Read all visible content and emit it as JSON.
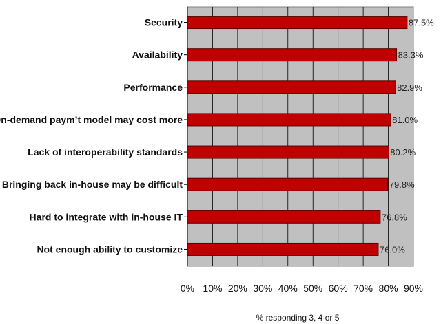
{
  "chart_data": {
    "type": "bar",
    "orientation": "horizontal",
    "categories": [
      "Security",
      "Availability",
      "Performance",
      "On-demand paym’t model may cost more",
      "Lack of interoperability standards",
      "Bringing back in-house may be difficult",
      "Hard to integrate with in-house IT",
      "Not enough ability to customize"
    ],
    "values": [
      87.5,
      83.3,
      82.9,
      81.0,
      80.2,
      79.8,
      76.8,
      76.0
    ],
    "data_labels": [
      "87.5%",
      "83.3%",
      "82.9%",
      "81.0%",
      "80.2%",
      "79.8%",
      "76.8%",
      "76.0%"
    ],
    "x_ticks": [
      "0%",
      "10%",
      "20%",
      "30%",
      "40%",
      "50%",
      "60%",
      "70%",
      "80%",
      "90%"
    ],
    "xlabel": "% responding 3, 4 or 5",
    "xlim": [
      0,
      90
    ],
    "grid": true,
    "legend": "none",
    "colors": {
      "bar": "#c00000",
      "bar_edge": "#5a0000",
      "plot_background": "#c0c0c0",
      "grid": "#000000"
    }
  }
}
